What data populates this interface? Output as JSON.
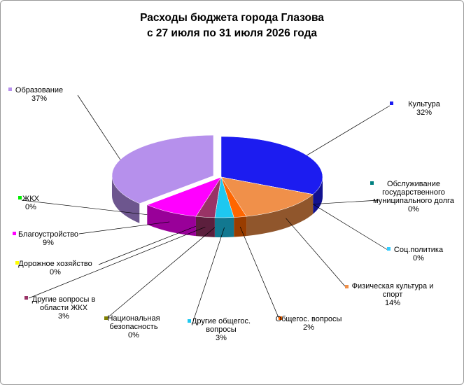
{
  "chart_data": {
    "type": "pie",
    "title": "Расходы бюджета города Глазова",
    "subtitle": "с 27 июля по 31 июля 2026 года",
    "categories": [
      "Культура",
      "Обслуживание государственного муниципального долга",
      "Соц.политика",
      "Физическая культура и спорт",
      "Общегос. вопросы",
      "Другие общегос. вопросы",
      "Национальная безопасность",
      "Другие вопросы в области ЖКХ",
      "Дорожное хозяйство",
      "Благоустройство",
      "ЖКХ",
      "Образование"
    ],
    "values": [
      32,
      0,
      0,
      14,
      2,
      3,
      0,
      3,
      0,
      9,
      0,
      37
    ],
    "value_labels": [
      "32%",
      "0%",
      "0%",
      "14%",
      "2%",
      "3%",
      "0%",
      "3%",
      "0%",
      "9%",
      "0%",
      "37%"
    ],
    "colors": [
      "#1c1cf0",
      "#008080",
      "#33ccff",
      "#f0904a",
      "#ff6600",
      "#1ec8f0",
      "#808000",
      "#993366",
      "#ffff00",
      "#ff00ff",
      "#00ee00",
      "#b690ec"
    ]
  }
}
